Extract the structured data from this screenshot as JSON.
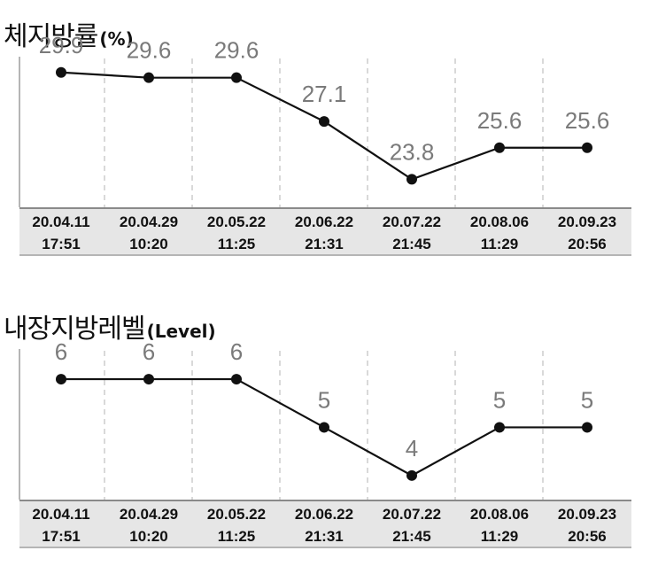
{
  "chart_data": [
    {
      "type": "line",
      "title": "체지방률",
      "unit": "(%)",
      "categories": [
        {
          "date": "20.04.11",
          "time": "17:51"
        },
        {
          "date": "20.04.29",
          "time": "10:20"
        },
        {
          "date": "20.05.22",
          "time": "11:25"
        },
        {
          "date": "20.06.22",
          "time": "21:31"
        },
        {
          "date": "20.07.22",
          "time": "21:45"
        },
        {
          "date": "20.08.06",
          "time": "11:29"
        },
        {
          "date": "20.09.23",
          "time": "20:56"
        }
      ],
      "values": [
        29.9,
        29.6,
        29.6,
        27.1,
        23.8,
        25.6,
        25.6
      ],
      "labels": [
        "29.9",
        "29.6",
        "29.6",
        "27.1",
        "23.8",
        "25.6",
        "25.6"
      ],
      "ylim": [
        22.2,
        31.0
      ],
      "grid": "vertical-dashed",
      "colors": {
        "line": "#111111",
        "point": "#111111",
        "value_label": "#7a7a7a",
        "axis_band": "#e6e6e6",
        "grid": "#d9d9d9"
      }
    },
    {
      "type": "line",
      "title": "내장지방레벨",
      "unit": "(Level)",
      "categories": [
        {
          "date": "20.04.11",
          "time": "17:51"
        },
        {
          "date": "20.04.29",
          "time": "10:20"
        },
        {
          "date": "20.05.22",
          "time": "11:25"
        },
        {
          "date": "20.06.22",
          "time": "21:31"
        },
        {
          "date": "20.07.22",
          "time": "21:45"
        },
        {
          "date": "20.08.06",
          "time": "11:29"
        },
        {
          "date": "20.09.23",
          "time": "20:56"
        }
      ],
      "values": [
        6,
        6,
        6,
        5,
        4,
        5,
        5
      ],
      "labels": [
        "6",
        "6",
        "6",
        "5",
        "4",
        "5",
        "5"
      ],
      "ylim": [
        3.5,
        6.7
      ],
      "grid": "vertical-dashed",
      "colors": {
        "line": "#111111",
        "point": "#111111",
        "value_label": "#7a7a7a",
        "axis_band": "#e6e6e6",
        "grid": "#d9d9d9"
      }
    }
  ]
}
